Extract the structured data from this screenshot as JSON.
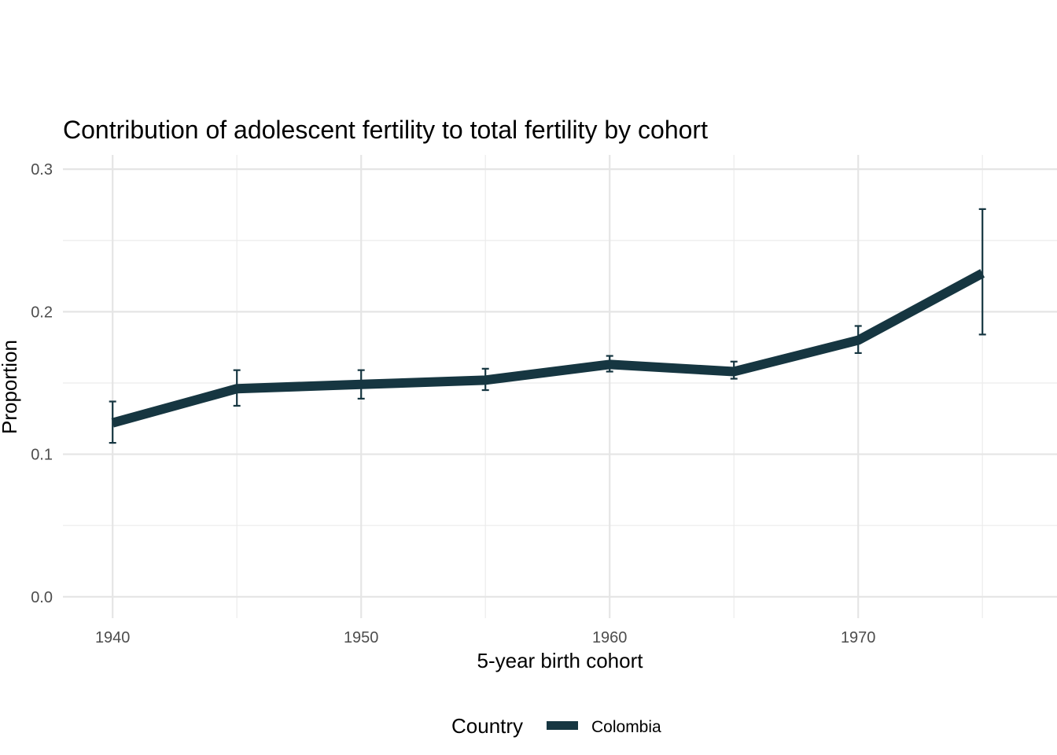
{
  "chart_data": {
    "type": "line",
    "title": "Contribution of adolescent fertility to total fertility by cohort",
    "xlabel": "5-year birth cohort",
    "ylabel": "Proportion",
    "x": [
      1940,
      1945,
      1950,
      1955,
      1960,
      1965,
      1970,
      1975
    ],
    "xlim": [
      1938,
      1978
    ],
    "ylim": [
      -0.015,
      0.31
    ],
    "x_ticks": [
      {
        "value": 1940,
        "label": "1940"
      },
      {
        "value": 1950,
        "label": "1950"
      },
      {
        "value": 1960,
        "label": "1960"
      },
      {
        "value": 1970,
        "label": "1970"
      }
    ],
    "x_minor_ticks": [
      1945,
      1955,
      1965,
      1975
    ],
    "y_ticks": [
      {
        "value": 0.0,
        "label": "0.0"
      },
      {
        "value": 0.1,
        "label": "0.1"
      },
      {
        "value": 0.2,
        "label": "0.2"
      },
      {
        "value": 0.3,
        "label": "0.3"
      }
    ],
    "y_minor_ticks": [
      0.05,
      0.15,
      0.25
    ],
    "grid": true,
    "legend": {
      "title": "Country",
      "position": "bottom"
    },
    "series": [
      {
        "name": "Colombia",
        "color": "#163641",
        "values": [
          0.122,
          0.146,
          0.149,
          0.152,
          0.163,
          0.158,
          0.18,
          0.227
        ],
        "lower": [
          0.108,
          0.134,
          0.139,
          0.145,
          0.158,
          0.153,
          0.171,
          0.184
        ],
        "upper": [
          0.137,
          0.159,
          0.159,
          0.16,
          0.169,
          0.165,
          0.19,
          0.272
        ]
      }
    ]
  }
}
